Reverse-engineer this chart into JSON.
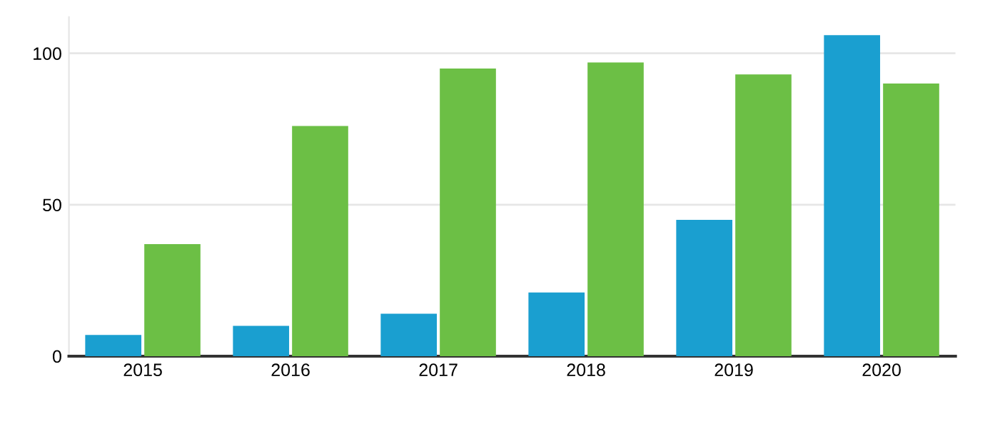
{
  "chart_data": {
    "type": "bar",
    "categories": [
      "2015",
      "2016",
      "2017",
      "2018",
      "2019",
      "2020"
    ],
    "series": [
      {
        "color": "#1a9fd0",
        "values": [
          7,
          10,
          14,
          21,
          45,
          106
        ]
      },
      {
        "color": "#6cbf45",
        "values": [
          37,
          76,
          95,
          97,
          93,
          90
        ]
      }
    ],
    "ylim": [
      0,
      112
    ],
    "yticks": [
      0,
      50,
      100
    ],
    "grid": "y"
  }
}
